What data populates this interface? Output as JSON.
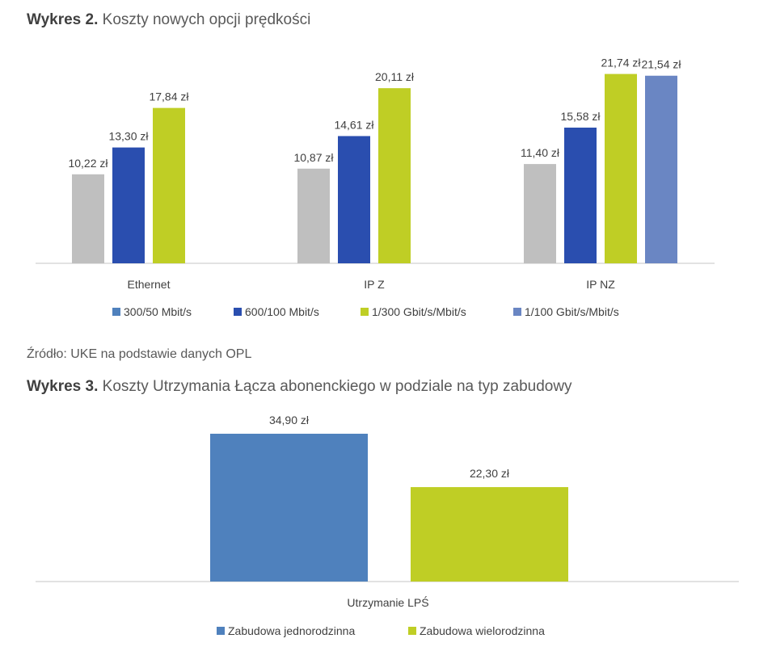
{
  "figures": [
    {
      "label": "Wykres 2.",
      "title": "Koszty nowych opcji prędkości"
    },
    {
      "label": "Wykres 3.",
      "title": "Koszty Utrzymania Łącza abonenckiego w podziale na typ zabudowy"
    }
  ],
  "source_note": "Źródło: UKE na podstawie danych OPL",
  "chart_data": [
    {
      "type": "bar",
      "title": "Koszty nowych opcji prędkości",
      "categories": [
        "Ethernet",
        "IP Z",
        "IP NZ"
      ],
      "series": [
        {
          "name": "300/50 Mbit/s",
          "color": "#BFBFBF",
          "values": [
            10.22,
            10.87,
            11.4
          ],
          "labels": [
            "10,22 zł",
            "10,87 zł",
            "11,40 zł"
          ]
        },
        {
          "name": "600/100 Mbit/s",
          "color": "#2A4EAF",
          "values": [
            13.3,
            14.61,
            15.58
          ],
          "labels": [
            "13,30 zł",
            "14,61 zł",
            "15,58 zł"
          ]
        },
        {
          "name": "1/300 Gbit/s/Mbit/s",
          "color": "#BFCE25",
          "values": [
            17.84,
            20.11,
            21.74
          ],
          "labels": [
            "17,84 zł",
            "20,11 zł",
            "21,74 zł"
          ]
        },
        {
          "name": "1/100 Gbit/s/Mbit/s",
          "color": "#6A86C3",
          "values": [
            null,
            null,
            21.54
          ],
          "labels": [
            null,
            null,
            "21,54 zł"
          ]
        }
      ],
      "legend_markers": [
        {
          "name": "300/50 Mbit/s",
          "color": "#4F81BD"
        },
        {
          "name": "600/100 Mbit/s",
          "color": "#2A4EAF"
        },
        {
          "name": "1/300 Gbit/s/Mbit/s",
          "color": "#BFCE25"
        },
        {
          "name": "1/100 Gbit/s/Mbit/s",
          "color": "#6A86C3"
        }
      ],
      "ylim": [
        0,
        23
      ],
      "grid": false,
      "legend_position": "bottom"
    },
    {
      "type": "bar",
      "title": "Koszty Utrzymania Łącza abonenckiego w podziale na typ zabudowy",
      "categories": [
        "Utrzymanie LPŚ"
      ],
      "series": [
        {
          "name": "Zabudowa jednorodzinna",
          "color": "#4F81BD",
          "values": [
            34.9
          ],
          "labels": [
            "34,90 zł"
          ]
        },
        {
          "name": "Zabudowa wielorodzinna",
          "color": "#BFCE25",
          "values": [
            22.3
          ],
          "labels": [
            "22,30 zł"
          ]
        }
      ],
      "ylim": [
        0,
        37
      ],
      "grid": false,
      "legend_position": "bottom"
    }
  ]
}
